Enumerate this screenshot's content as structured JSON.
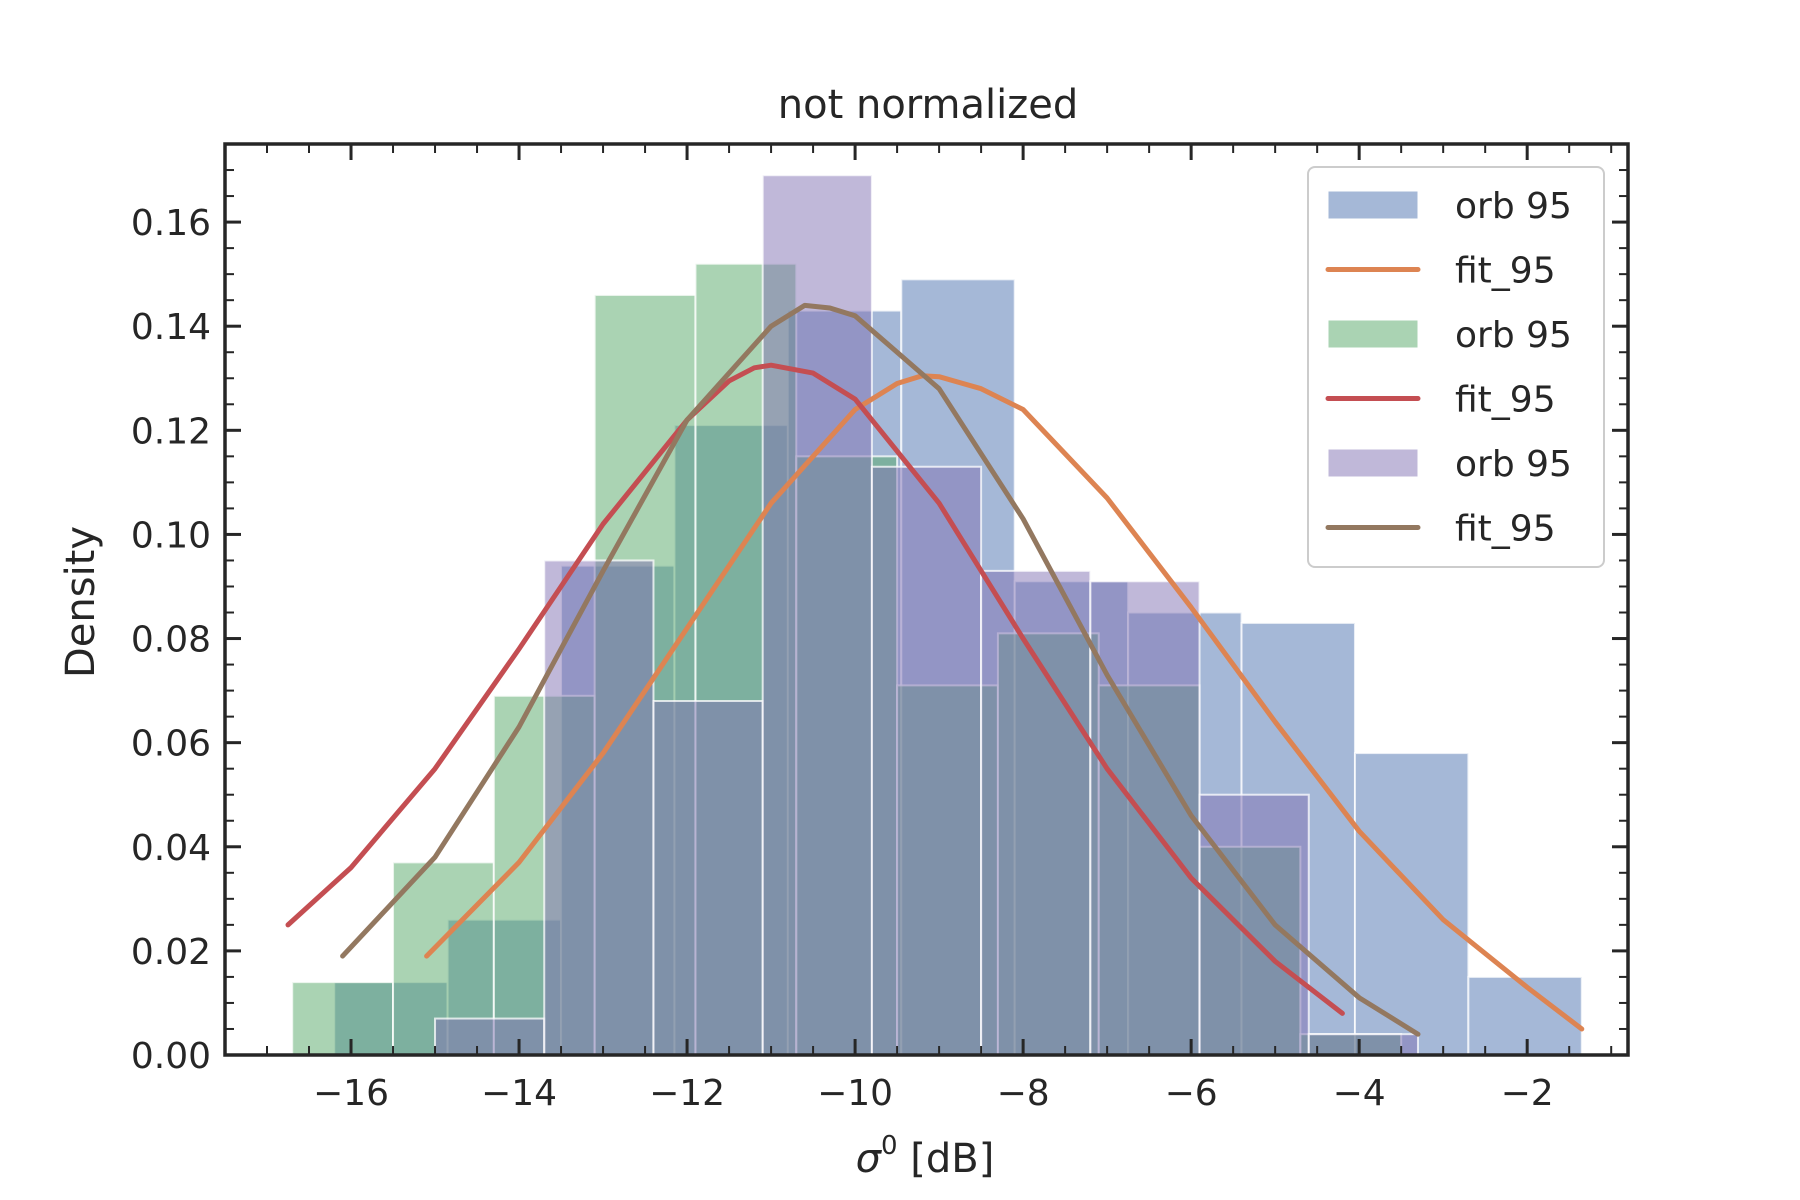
{
  "chart_data": {
    "type": "bar",
    "title": "not normalized",
    "xlabel_symbol": "σ",
    "xlabel_sup": "0",
    "xlabel_unit": " [dB]",
    "ylabel": "Density",
    "xlim": [
      -17.5,
      -0.8
    ],
    "ylim": [
      0,
      0.175
    ],
    "xticks": [
      -16,
      -14,
      -12,
      -10,
      -8,
      -6,
      -4,
      -2
    ],
    "yticks": [
      0.0,
      0.02,
      0.04,
      0.06,
      0.08,
      0.1,
      0.12,
      0.14,
      0.16
    ],
    "xtick_labels": [
      "−16",
      "−14",
      "−12",
      "−10",
      "−8",
      "−6",
      "−4",
      "−2"
    ],
    "ytick_labels": [
      "0.00",
      "0.02",
      "0.04",
      "0.06",
      "0.08",
      "0.10",
      "0.12",
      "0.14",
      "0.16"
    ],
    "legend_position": "top-right",
    "series": [
      {
        "name": "orb 95",
        "kind": "hist",
        "color": "#4c72b0",
        "bins": [
          {
            "x0": -16.2,
            "x1": -14.85,
            "y": 0.014
          },
          {
            "x0": -14.85,
            "x1": -13.5,
            "y": 0.026
          },
          {
            "x0": -13.5,
            "x1": -12.15,
            "y": 0.094
          },
          {
            "x0": -12.15,
            "x1": -10.8,
            "y": 0.121
          },
          {
            "x0": -10.8,
            "x1": -9.45,
            "y": 0.143
          },
          {
            "x0": -9.45,
            "x1": -8.1,
            "y": 0.149
          },
          {
            "x0": -8.1,
            "x1": -6.75,
            "y": 0.091
          },
          {
            "x0": -6.75,
            "x1": -5.4,
            "y": 0.085
          },
          {
            "x0": -5.4,
            "x1": -4.05,
            "y": 0.083
          },
          {
            "x0": -4.05,
            "x1": -2.7,
            "y": 0.058
          },
          {
            "x0": -2.7,
            "x1": -1.35,
            "y": 0.015
          }
        ]
      },
      {
        "name": "fit_95",
        "kind": "line",
        "color": "#dd8452",
        "x": [
          -15.1,
          -14.0,
          -13.0,
          -12.0,
          -11.0,
          -10.0,
          -9.5,
          -9.2,
          -9.0,
          -8.5,
          -8.0,
          -7.0,
          -6.0,
          -5.0,
          -4.0,
          -3.0,
          -2.0,
          -1.35
        ],
        "y": [
          0.019,
          0.037,
          0.058,
          0.082,
          0.106,
          0.124,
          0.129,
          0.1305,
          0.1303,
          0.128,
          0.124,
          0.107,
          0.086,
          0.064,
          0.043,
          0.026,
          0.013,
          0.005
        ]
      },
      {
        "name": "orb 95",
        "kind": "hist",
        "color": "#55a868",
        "bins": [
          {
            "x0": -16.7,
            "x1": -15.5,
            "y": 0.014
          },
          {
            "x0": -15.5,
            "x1": -14.3,
            "y": 0.037
          },
          {
            "x0": -14.3,
            "x1": -13.1,
            "y": 0.069
          },
          {
            "x0": -13.1,
            "x1": -11.9,
            "y": 0.146
          },
          {
            "x0": -11.9,
            "x1": -10.7,
            "y": 0.152
          },
          {
            "x0": -10.7,
            "x1": -9.5,
            "y": 0.115
          },
          {
            "x0": -9.5,
            "x1": -8.3,
            "y": 0.071
          },
          {
            "x0": -8.3,
            "x1": -7.1,
            "y": 0.081
          },
          {
            "x0": -7.1,
            "x1": -5.9,
            "y": 0.071
          },
          {
            "x0": -5.9,
            "x1": -4.7,
            "y": 0.04
          },
          {
            "x0": -4.7,
            "x1": -3.5,
            "y": 0.004
          }
        ]
      },
      {
        "name": "fit_95",
        "kind": "line",
        "color": "#c44e52",
        "x": [
          -16.75,
          -16.0,
          -15.0,
          -14.0,
          -13.0,
          -12.0,
          -11.5,
          -11.2,
          -11.0,
          -10.5,
          -10.0,
          -9.0,
          -8.0,
          -7.0,
          -6.0,
          -5.0,
          -4.2
        ],
        "y": [
          0.025,
          0.036,
          0.055,
          0.078,
          0.102,
          0.122,
          0.1295,
          0.132,
          0.1325,
          0.131,
          0.126,
          0.106,
          0.08,
          0.055,
          0.034,
          0.018,
          0.008
        ]
      },
      {
        "name": "orb 95",
        "kind": "hist",
        "color": "#8172b3",
        "bins": [
          {
            "x0": -15.0,
            "x1": -13.7,
            "y": 0.007
          },
          {
            "x0": -13.7,
            "x1": -12.4,
            "y": 0.095
          },
          {
            "x0": -12.4,
            "x1": -11.1,
            "y": 0.068
          },
          {
            "x0": -11.1,
            "x1": -9.8,
            "y": 0.169
          },
          {
            "x0": -9.8,
            "x1": -8.5,
            "y": 0.113
          },
          {
            "x0": -8.5,
            "x1": -7.2,
            "y": 0.093
          },
          {
            "x0": -7.2,
            "x1": -5.9,
            "y": 0.091
          },
          {
            "x0": -5.9,
            "x1": -4.6,
            "y": 0.05
          },
          {
            "x0": -4.6,
            "x1": -3.3,
            "y": 0.004
          }
        ]
      },
      {
        "name": "fit_95",
        "kind": "line",
        "color": "#937860",
        "x": [
          -16.1,
          -15.0,
          -14.0,
          -13.0,
          -12.0,
          -11.0,
          -10.6,
          -10.3,
          -10.0,
          -9.0,
          -8.0,
          -7.0,
          -6.0,
          -5.0,
          -4.0,
          -3.3
        ],
        "y": [
          0.019,
          0.038,
          0.063,
          0.093,
          0.122,
          0.14,
          0.144,
          0.1435,
          0.142,
          0.128,
          0.103,
          0.073,
          0.046,
          0.025,
          0.011,
          0.004
        ]
      }
    ]
  }
}
